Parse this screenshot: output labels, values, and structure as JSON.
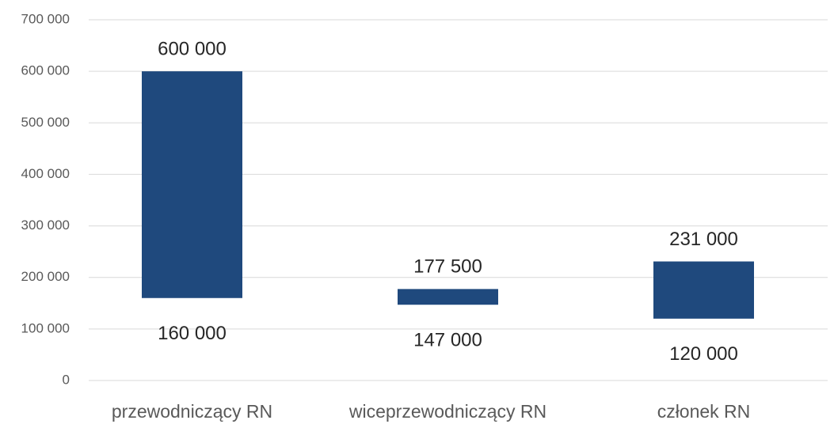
{
  "chart_data": {
    "type": "range_bar",
    "categories": [
      "przewodniczący RN",
      "wiceprzewodniczący RN",
      "członek RN"
    ],
    "low": {
      "values": [
        160000,
        147000,
        120000
      ],
      "value_labels": [
        "160 000",
        "147 000",
        "120 000"
      ]
    },
    "high": {
      "values": [
        600000,
        177500,
        231000
      ],
      "value_labels": [
        "600 000",
        "177 500",
        "231 000"
      ]
    },
    "color": "#1f497d",
    "ylim": [
      0,
      700000
    ],
    "yticks": [
      0,
      {
        "value": 100000,
        "label": "100 000"
      },
      {
        "value": 200000,
        "label": "200 000"
      },
      {
        "value": 300000,
        "label": "300 000"
      },
      {
        "value": 400000,
        "label": "400 000"
      },
      {
        "value": 500000,
        "label": "500 000"
      },
      {
        "value": 600000,
        "label": "600 000"
      },
      {
        "value": 700000,
        "label": "700 000"
      }
    ],
    "grid": true
  }
}
